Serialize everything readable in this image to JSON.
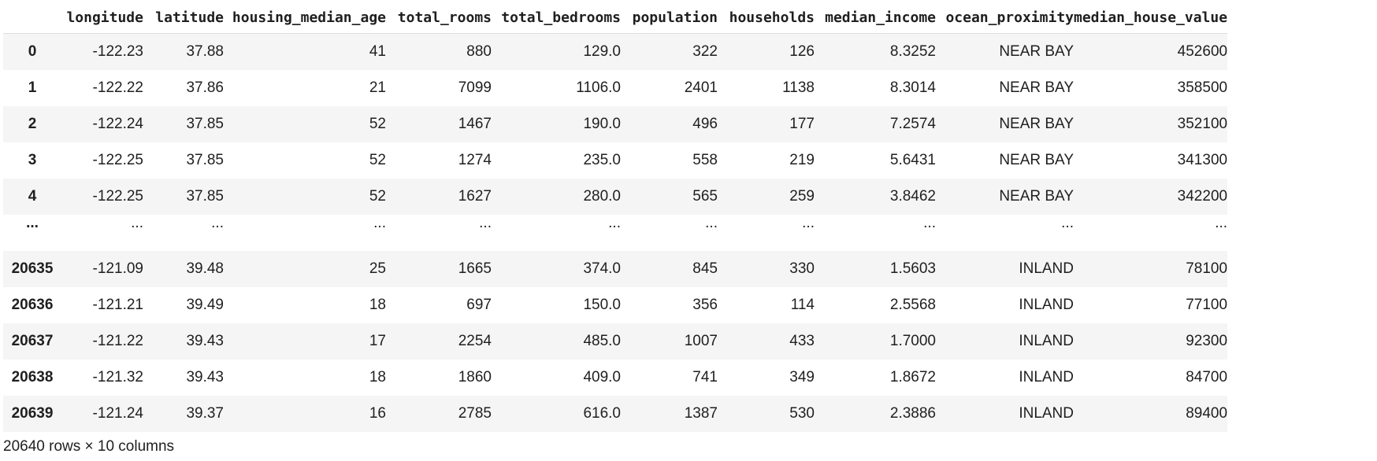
{
  "table": {
    "columns": [
      "longitude",
      "latitude",
      "housing_median_age",
      "total_rooms",
      "total_bedrooms",
      "population",
      "households",
      "median_income",
      "ocean_proximity",
      "median_house_value"
    ],
    "rows": [
      {
        "index": "0",
        "cells": [
          "-122.23",
          "37.88",
          "41",
          "880",
          "129.0",
          "322",
          "126",
          "8.3252",
          "NEAR BAY",
          "452600"
        ]
      },
      {
        "index": "1",
        "cells": [
          "-122.22",
          "37.86",
          "21",
          "7099",
          "1106.0",
          "2401",
          "1138",
          "8.3014",
          "NEAR BAY",
          "358500"
        ]
      },
      {
        "index": "2",
        "cells": [
          "-122.24",
          "37.85",
          "52",
          "1467",
          "190.0",
          "496",
          "177",
          "7.2574",
          "NEAR BAY",
          "352100"
        ]
      },
      {
        "index": "3",
        "cells": [
          "-122.25",
          "37.85",
          "52",
          "1274",
          "235.0",
          "558",
          "219",
          "5.6431",
          "NEAR BAY",
          "341300"
        ]
      },
      {
        "index": "4",
        "cells": [
          "-122.25",
          "37.85",
          "52",
          "1627",
          "280.0",
          "565",
          "259",
          "3.8462",
          "NEAR BAY",
          "342200"
        ]
      },
      {
        "index": "...",
        "cells": [
          "...",
          "...",
          "...",
          "...",
          "...",
          "...",
          "...",
          "...",
          "...",
          "..."
        ]
      },
      {
        "index": "20635",
        "cells": [
          "-121.09",
          "39.48",
          "25",
          "1665",
          "374.0",
          "845",
          "330",
          "1.5603",
          "INLAND",
          "78100"
        ]
      },
      {
        "index": "20636",
        "cells": [
          "-121.21",
          "39.49",
          "18",
          "697",
          "150.0",
          "356",
          "114",
          "2.5568",
          "INLAND",
          "77100"
        ]
      },
      {
        "index": "20637",
        "cells": [
          "-121.22",
          "39.43",
          "17",
          "2254",
          "485.0",
          "1007",
          "433",
          "1.7000",
          "INLAND",
          "92300"
        ]
      },
      {
        "index": "20638",
        "cells": [
          "-121.32",
          "39.43",
          "18",
          "1860",
          "409.0",
          "741",
          "349",
          "1.8672",
          "INLAND",
          "84700"
        ]
      },
      {
        "index": "20639",
        "cells": [
          "-121.24",
          "39.37",
          "16",
          "2785",
          "616.0",
          "1387",
          "530",
          "2.3886",
          "INLAND",
          "89400"
        ]
      }
    ]
  },
  "footer": {
    "shape_text": "20640 rows × 10 columns"
  }
}
